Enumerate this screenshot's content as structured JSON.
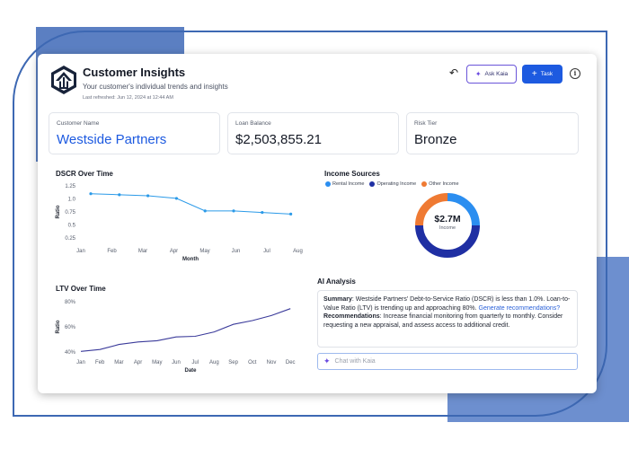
{
  "header": {
    "title": "Customer Insights",
    "subtitle": "Your customer's individual trends and insights",
    "last_refreshed": "Last refreshed: Jun 12, 2024 at 12:44 AM",
    "ask_label": "Ask Kaia",
    "task_label": "Task",
    "info_glyph": "i",
    "undo_glyph": "↶"
  },
  "stats": {
    "customer_name_label": "Customer Name",
    "customer_name": "Westside Partners",
    "loan_balance_label": "Loan Balance",
    "loan_balance": "$2,503,855.21",
    "risk_tier_label": "Risk Tier",
    "risk_tier": "Bronze"
  },
  "income": {
    "title": "Income Sources",
    "legend": [
      {
        "label": "Rental Income",
        "color": "#2b8ef0"
      },
      {
        "label": "Operating Income",
        "color": "#1f2fa3"
      },
      {
        "label": "Other Income",
        "color": "#ef7a33"
      }
    ],
    "total": "$2.7M",
    "total_label": "Income"
  },
  "ai": {
    "title": "AI Analysis",
    "summary_label": "Summary",
    "summary_text": ": Westside Partners' Debt-to-Service Ratio (DSCR) is less than 1.0%. Loan-to-Value Ratio (LTV) is trending up and approaching 80%. ",
    "summary_link": "Generate recommendations?",
    "rec_label": "Recommendations",
    "rec_text": ": Increase financial monitoring from quarterly to monthly. Consider requesting a new appraisal, and assess access to additional credit.",
    "chat_placeholder": "Chat with Kaia"
  },
  "colors": {
    "accent": "#1d5ae0",
    "dscr_line": "#2b9ae8",
    "ltv_line": "#3a3a9a"
  },
  "chart_data": [
    {
      "type": "line",
      "title": "DSCR Over Time",
      "xlabel": "Month",
      "ylabel": "Ratio",
      "categories": [
        "Jan",
        "Feb",
        "Mar",
        "Apr",
        "May",
        "Jun",
        "Jul",
        "Aug"
      ],
      "point_categories": [
        "Jan",
        "Feb",
        "Mar",
        "Apr",
        "May",
        "Jun",
        "Jul",
        "Aug"
      ],
      "values": [
        1.1,
        1.08,
        1.06,
        1.01,
        0.77,
        0.77,
        0.74,
        0.71
      ],
      "yticks": [
        "1.25",
        "1.0",
        "0.75",
        "0.5",
        "0.25"
      ],
      "ylim": [
        0.25,
        1.25
      ],
      "tick_values": [
        1.25,
        1.0,
        0.75,
        0.5,
        0.25
      ]
    },
    {
      "type": "line",
      "title": "LTV Over Time",
      "xlabel": "Date",
      "ylabel": "Ratio",
      "categories": [
        "Jan",
        "Feb",
        "Mar",
        "Apr",
        "May",
        "Jun",
        "Jul",
        "Aug",
        "Sep",
        "Oct",
        "Nov",
        "Dec"
      ],
      "values": [
        40.5,
        42,
        46,
        48,
        49,
        52,
        52.5,
        56,
        62,
        65,
        69,
        74.5
      ],
      "yticks": [
        "80%",
        "60%",
        "40%"
      ],
      "tick_values": [
        80,
        60,
        40
      ],
      "ylim": [
        40,
        80
      ]
    },
    {
      "type": "pie",
      "title": "Income Sources",
      "categories": [
        "Rental Income",
        "Operating Income",
        "Other Income"
      ],
      "values": [
        25,
        50,
        25
      ],
      "center_text": "$2.7M"
    }
  ]
}
